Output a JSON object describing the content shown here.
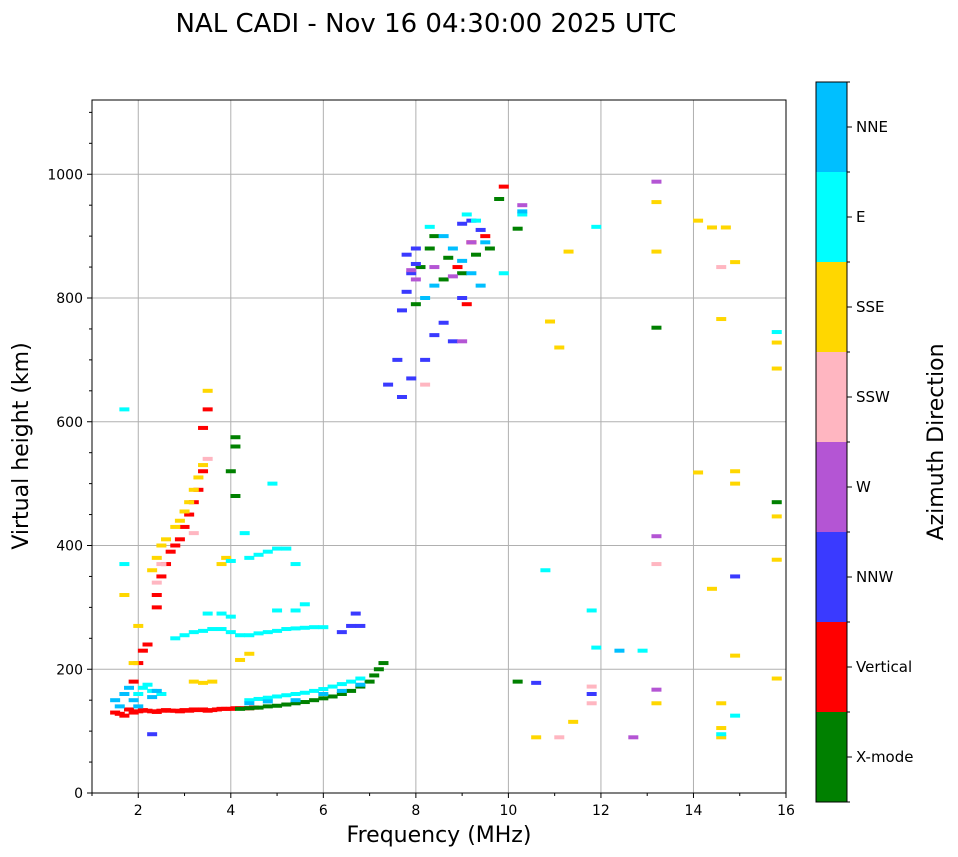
{
  "chart_data": {
    "type": "scatter",
    "title": "NAL CADI - Nov 16 04:30:00 2025 UTC",
    "xlabel": "Frequency (MHz)",
    "ylabel": "Virtual height (km)",
    "xlim": [
      1,
      16
    ],
    "ylim": [
      0,
      1120
    ],
    "x_ticks": [
      2,
      4,
      6,
      8,
      10,
      12,
      14,
      16
    ],
    "y_ticks": [
      0,
      200,
      400,
      600,
      800,
      1000
    ],
    "grid": true,
    "colorbar": {
      "title": "Azimuth Direction",
      "categories": [
        {
          "name": "X-mode",
          "color": "#008000"
        },
        {
          "name": "Vertical",
          "color": "#ff0000"
        },
        {
          "name": "NNW",
          "color": "#3a3aff"
        },
        {
          "name": "W",
          "color": "#b455d4"
        },
        {
          "name": "SSW",
          "color": "#ffb6c1"
        },
        {
          "name": "SSE",
          "color": "#ffd700"
        },
        {
          "name": "E",
          "color": "#00ffff"
        },
        {
          "name": "NNE",
          "color": "#00bfff"
        }
      ]
    },
    "series": [
      {
        "name": "Vertical",
        "points": [
          [
            1.5,
            130
          ],
          [
            1.6,
            128
          ],
          [
            1.7,
            125
          ],
          [
            1.8,
            135
          ],
          [
            1.9,
            130
          ],
          [
            2.0,
            132
          ],
          [
            2.1,
            134
          ],
          [
            2.2,
            133
          ],
          [
            2.3,
            132
          ],
          [
            2.4,
            131
          ],
          [
            2.5,
            133
          ],
          [
            2.6,
            134
          ],
          [
            2.7,
            133
          ],
          [
            2.8,
            133
          ],
          [
            2.9,
            132
          ],
          [
            3.0,
            134
          ],
          [
            3.1,
            133
          ],
          [
            3.2,
            135
          ],
          [
            3.3,
            134
          ],
          [
            3.4,
            135
          ],
          [
            3.5,
            133
          ],
          [
            3.6,
            134
          ],
          [
            3.7,
            135
          ],
          [
            3.8,
            136
          ],
          [
            3.9,
            136
          ],
          [
            4.0,
            136
          ],
          [
            4.1,
            137
          ],
          [
            4.2,
            137
          ],
          [
            4.3,
            137
          ],
          [
            4.4,
            137
          ],
          [
            4.5,
            138
          ],
          [
            1.9,
            180
          ],
          [
            2.0,
            210
          ],
          [
            2.1,
            230
          ],
          [
            2.2,
            240
          ],
          [
            2.4,
            320
          ],
          [
            2.5,
            350
          ],
          [
            2.6,
            370
          ],
          [
            2.7,
            390
          ],
          [
            2.8,
            400
          ],
          [
            2.9,
            410
          ],
          [
            3.0,
            430
          ],
          [
            3.1,
            450
          ],
          [
            3.2,
            470
          ],
          [
            3.3,
            490
          ],
          [
            3.4,
            520
          ],
          [
            3.4,
            590
          ],
          [
            3.5,
            620
          ],
          [
            2.4,
            300
          ],
          [
            9.2,
            890
          ],
          [
            9.5,
            900
          ],
          [
            9.1,
            790
          ],
          [
            9.9,
            980
          ],
          [
            8.9,
            850
          ]
        ]
      },
      {
        "name": "X-mode",
        "points": [
          [
            4.2,
            136
          ],
          [
            4.4,
            137
          ],
          [
            4.6,
            138
          ],
          [
            4.8,
            140
          ],
          [
            5.0,
            141
          ],
          [
            5.2,
            143
          ],
          [
            5.4,
            145
          ],
          [
            5.6,
            147
          ],
          [
            5.8,
            150
          ],
          [
            6.0,
            153
          ],
          [
            6.2,
            156
          ],
          [
            6.4,
            160
          ],
          [
            6.6,
            165
          ],
          [
            6.8,
            172
          ],
          [
            7.0,
            180
          ],
          [
            7.1,
            190
          ],
          [
            7.2,
            200
          ],
          [
            7.3,
            210
          ],
          [
            4.0,
            520
          ],
          [
            4.1,
            560
          ],
          [
            4.1,
            575
          ],
          [
            4.1,
            480
          ],
          [
            8.4,
            900
          ],
          [
            8.7,
            865
          ],
          [
            9.0,
            840
          ],
          [
            9.3,
            870
          ],
          [
            9.6,
            880
          ],
          [
            9.8,
            960
          ],
          [
            10.2,
            912
          ],
          [
            10.2,
            180
          ],
          [
            13.2,
            752
          ],
          [
            15.8,
            470
          ],
          [
            8.0,
            790
          ],
          [
            8.1,
            850
          ],
          [
            8.3,
            880
          ],
          [
            8.6,
            830
          ]
        ]
      },
      {
        "name": "NNW",
        "points": [
          [
            7.4,
            660
          ],
          [
            7.6,
            700
          ],
          [
            7.7,
            780
          ],
          [
            7.8,
            810
          ],
          [
            7.9,
            840
          ],
          [
            8.0,
            855
          ],
          [
            7.7,
            640
          ],
          [
            7.9,
            670
          ],
          [
            8.2,
            700
          ],
          [
            8.4,
            740
          ],
          [
            8.6,
            760
          ],
          [
            8.8,
            730
          ],
          [
            9.0,
            800
          ],
          [
            7.8,
            870
          ],
          [
            8.0,
            880
          ],
          [
            9.0,
            920
          ],
          [
            9.2,
            925
          ],
          [
            9.4,
            910
          ],
          [
            6.6,
            270
          ],
          [
            6.4,
            260
          ],
          [
            6.8,
            270
          ],
          [
            6.7,
            290
          ],
          [
            2.3,
            95
          ],
          [
            10.6,
            178
          ],
          [
            11.8,
            160
          ],
          [
            14.9,
            350
          ]
        ]
      },
      {
        "name": "W",
        "points": [
          [
            8.0,
            830
          ],
          [
            8.4,
            850
          ],
          [
            8.8,
            835
          ],
          [
            9.0,
            730
          ],
          [
            9.2,
            890
          ],
          [
            7.9,
            845
          ],
          [
            10.3,
            950
          ],
          [
            13.2,
            988
          ],
          [
            13.2,
            415
          ],
          [
            13.2,
            167
          ],
          [
            12.7,
            90
          ]
        ]
      },
      {
        "name": "SSW",
        "points": [
          [
            2.4,
            340
          ],
          [
            2.5,
            370
          ],
          [
            3.2,
            420
          ],
          [
            3.5,
            540
          ],
          [
            8.2,
            660
          ],
          [
            11.8,
            145
          ],
          [
            11.8,
            172
          ],
          [
            13.2,
            370
          ],
          [
            11.1,
            90
          ],
          [
            14.6,
            850
          ]
        ]
      },
      {
        "name": "SSE",
        "points": [
          [
            2.3,
            360
          ],
          [
            2.4,
            380
          ],
          [
            2.5,
            400
          ],
          [
            2.6,
            410
          ],
          [
            2.8,
            430
          ],
          [
            2.9,
            440
          ],
          [
            3.0,
            455
          ],
          [
            3.1,
            470
          ],
          [
            3.2,
            490
          ],
          [
            3.3,
            510
          ],
          [
            3.4,
            530
          ],
          [
            3.5,
            650
          ],
          [
            3.8,
            370
          ],
          [
            3.9,
            380
          ],
          [
            4.2,
            215
          ],
          [
            4.4,
            225
          ],
          [
            3.2,
            180
          ],
          [
            3.4,
            178
          ],
          [
            3.6,
            180
          ],
          [
            10.6,
            90
          ],
          [
            10.9,
            762
          ],
          [
            11.1,
            720
          ],
          [
            11.3,
            875
          ],
          [
            11.4,
            115
          ],
          [
            13.2,
            955
          ],
          [
            13.2,
            875
          ],
          [
            13.2,
            145
          ],
          [
            14.1,
            925
          ],
          [
            14.1,
            518
          ],
          [
            14.4,
            914
          ],
          [
            14.7,
            914
          ],
          [
            14.6,
            766
          ],
          [
            14.6,
            145
          ],
          [
            14.6,
            105
          ],
          [
            14.6,
            90
          ],
          [
            14.9,
            858
          ],
          [
            14.9,
            520
          ],
          [
            14.9,
            500
          ],
          [
            14.9,
            222
          ],
          [
            14.4,
            330
          ],
          [
            15.8,
            728
          ],
          [
            15.8,
            686
          ],
          [
            15.8,
            447
          ],
          [
            15.8,
            377
          ],
          [
            15.8,
            185
          ],
          [
            1.7,
            320
          ],
          [
            2.0,
            270
          ],
          [
            1.9,
            210
          ]
        ]
      },
      {
        "name": "E",
        "points": [
          [
            2.0,
            160
          ],
          [
            2.1,
            170
          ],
          [
            2.2,
            175
          ],
          [
            2.3,
            165
          ],
          [
            2.5,
            160
          ],
          [
            4.4,
            150
          ],
          [
            4.6,
            152
          ],
          [
            4.8,
            154
          ],
          [
            5.0,
            156
          ],
          [
            5.2,
            158
          ],
          [
            5.4,
            160
          ],
          [
            5.6,
            162
          ],
          [
            5.8,
            165
          ],
          [
            6.0,
            168
          ],
          [
            6.2,
            172
          ],
          [
            6.4,
            176
          ],
          [
            6.6,
            180
          ],
          [
            6.8,
            185
          ],
          [
            2.8,
            250
          ],
          [
            3.0,
            255
          ],
          [
            3.2,
            260
          ],
          [
            3.4,
            262
          ],
          [
            3.6,
            265
          ],
          [
            3.8,
            265
          ],
          [
            4.0,
            260
          ],
          [
            4.2,
            255
          ],
          [
            4.4,
            255
          ],
          [
            4.6,
            258
          ],
          [
            4.8,
            260
          ],
          [
            5.0,
            262
          ],
          [
            5.2,
            265
          ],
          [
            5.4,
            266
          ],
          [
            5.6,
            267
          ],
          [
            5.8,
            268
          ],
          [
            6.0,
            268
          ],
          [
            3.5,
            290
          ],
          [
            3.8,
            290
          ],
          [
            4.0,
            285
          ],
          [
            5.0,
            295
          ],
          [
            5.4,
            295
          ],
          [
            5.6,
            305
          ],
          [
            4.0,
            375
          ],
          [
            4.4,
            380
          ],
          [
            4.6,
            385
          ],
          [
            4.8,
            390
          ],
          [
            5.0,
            395
          ],
          [
            5.2,
            395
          ],
          [
            5.4,
            370
          ],
          [
            4.3,
            420
          ],
          [
            4.9,
            500
          ],
          [
            1.7,
            620
          ],
          [
            1.7,
            370
          ],
          [
            8.3,
            915
          ],
          [
            9.1,
            935
          ],
          [
            9.3,
            925
          ],
          [
            9.9,
            840
          ],
          [
            10.3,
            935
          ],
          [
            10.8,
            360
          ],
          [
            11.9,
            915
          ],
          [
            11.8,
            295
          ],
          [
            11.9,
            235
          ],
          [
            12.9,
            230
          ],
          [
            14.6,
            95
          ],
          [
            14.9,
            125
          ],
          [
            15.8,
            745
          ]
        ]
      },
      {
        "name": "NNE",
        "points": [
          [
            1.5,
            150
          ],
          [
            1.6,
            140
          ],
          [
            1.7,
            160
          ],
          [
            1.8,
            170
          ],
          [
            1.9,
            150
          ],
          [
            2.0,
            140
          ],
          [
            2.3,
            155
          ],
          [
            2.4,
            165
          ],
          [
            4.4,
            145
          ],
          [
            4.8,
            148
          ],
          [
            5.4,
            150
          ],
          [
            6.0,
            160
          ],
          [
            6.4,
            165
          ],
          [
            6.8,
            175
          ],
          [
            8.6,
            900
          ],
          [
            8.8,
            880
          ],
          [
            9.0,
            860
          ],
          [
            9.2,
            840
          ],
          [
            9.4,
            820
          ],
          [
            9.5,
            890
          ],
          [
            8.2,
            800
          ],
          [
            8.4,
            820
          ],
          [
            10.3,
            940
          ],
          [
            12.4,
            230
          ]
        ]
      }
    ]
  }
}
